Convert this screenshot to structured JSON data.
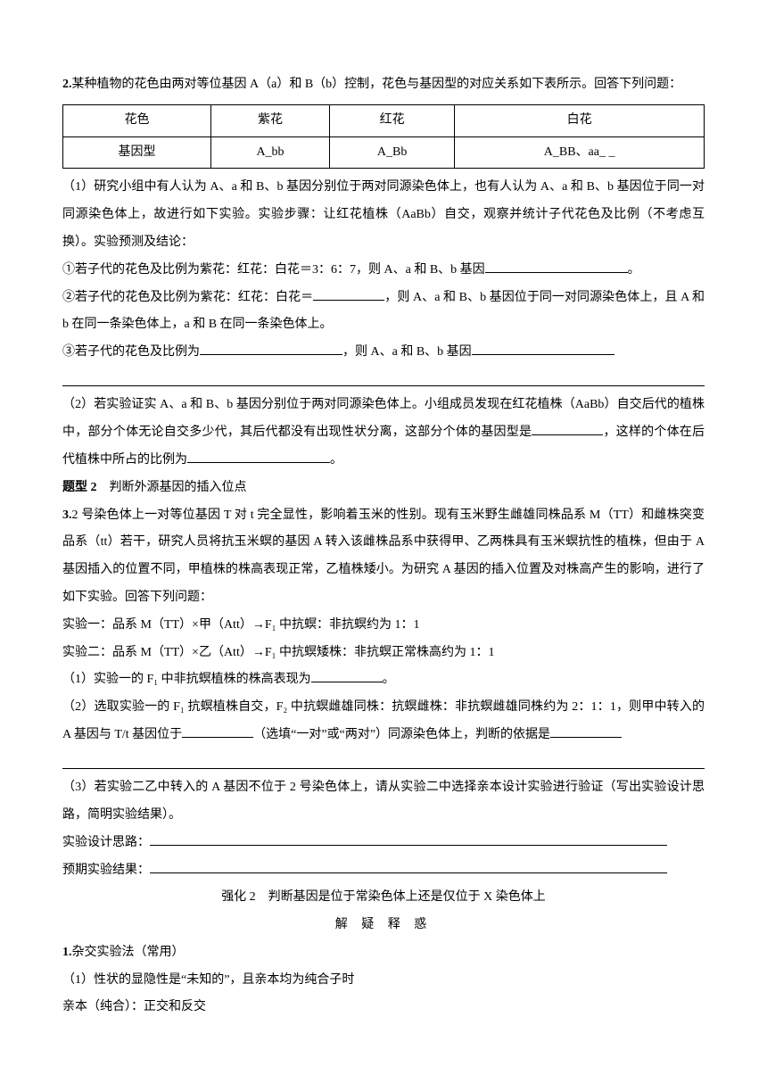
{
  "q2": {
    "number": "2.",
    "intro": "某种植物的花色由两对等位基因 A（a）和 B（b）控制，花色与基因型的对应关系如下表所示。回答下列问题：",
    "table": {
      "row1": [
        "花色",
        "紫花",
        "红花",
        "白花"
      ],
      "row2": [
        "基因型",
        "A_bb",
        "A_Bb",
        "A_BB、aa_ _"
      ]
    },
    "p1a": "（1）研究小组中有人认为 A、a 和 B、b 基因分别位于两对同源染色体上，也有人认为 A、a 和 B、b 基因位于同一对同源染色体上，故进行如下实验。实验步骤：让红花植株（AaBb）自交，观察并统计子代花色及比例（不考虑互换）。实验预测及结论：",
    "p1b": "①若子代的花色及比例为紫花：红花：白花＝3：6：7，则 A、a 和 B、b 基因",
    "p1b_end": "。",
    "p1c_a": "②若子代的花色及比例为紫花：红花：白花＝",
    "p1c_b": "，则 A、a 和 B、b 基因位于同一对同源染色体上，且 A 和 b 在同一条染色体上，a 和 B 在同一条染色体上。",
    "p1d_a": "③若子代的花色及比例为",
    "p1d_b": "，则 A、a 和 B、b 基因",
    "p2_a": "（2）若实验证实 A、a 和 B、b 基因分别位于两对同源染色体上。小组成员发现在红花植株（AaBb）自交后代的植株中，部分个体无论自交多少代，其后代都没有出现性状分离，这部分个体的基因型是",
    "p2_b": "，这样的个体在后代植株中所占的比例为",
    "p2_end": "。"
  },
  "h_type2": {
    "label": "题型 2",
    "title": "判断外源基因的插入位点"
  },
  "q3": {
    "number": "3.",
    "intro": "2 号染色体上一对等位基因 T 对 t 完全显性，影响着玉米的性别。现有玉米野生雌雄同株品系 M（TT）和雌株突变品系（tt）若干，研究人员将抗玉米螟的基因 A 转入该雌株品系中获得甲、乙两株具有玉米螟抗性的植株，但由于 A 基因插入的位置不同，甲植株的株高表现正常，乙植株矮小。为研究 A 基因的插入位置及对株高产生的影响，进行了如下实验。回答下列问题：",
    "exp1": "实验一：品系 M（TT）×甲（Att）→F₁ 中抗螟：非抗螟约为 1：1",
    "exp2": "实验二：品系 M（TT）×乙（Att）→F₁ 中抗螟矮株：非抗螟正常株高约为 1：1",
    "p1_a": "（1）实验一的 F₁ 中非抗螟植株的株高表现为",
    "p1_end": "。",
    "p2_a": "（2）选取实验一的 F₁ 抗螟植株自交，F₂ 中抗螟雌雄同株：抗螟雌株：非抗螟雌雄同株约为 2：1：1，则甲中转入的 A 基因与 T/t 基因位于",
    "p2_b": "（选填“一对”或“两对”）同源染色体上，判断的依据是",
    "p3": "（3）若实验二乙中转入的 A 基因不位于 2 号染色体上，请从实验二中选择亲本设计实验进行验证（写出实验设计思路，简明实验结果）。",
    "design_label": "实验设计思路：",
    "result_label": "预期实验结果："
  },
  "strong2": {
    "title": "强化 2　判断基因是位于常染色体上还是仅位于 X 染色体上",
    "subtitle": "解 疑 释 惑"
  },
  "m1": {
    "number": "1.",
    "title": "杂交实验法（常用）",
    "p1": "（1）性状的显隐性是“未知的”，且亲本均为纯合子时",
    "p2": "亲本（纯合）：正交和反交"
  }
}
